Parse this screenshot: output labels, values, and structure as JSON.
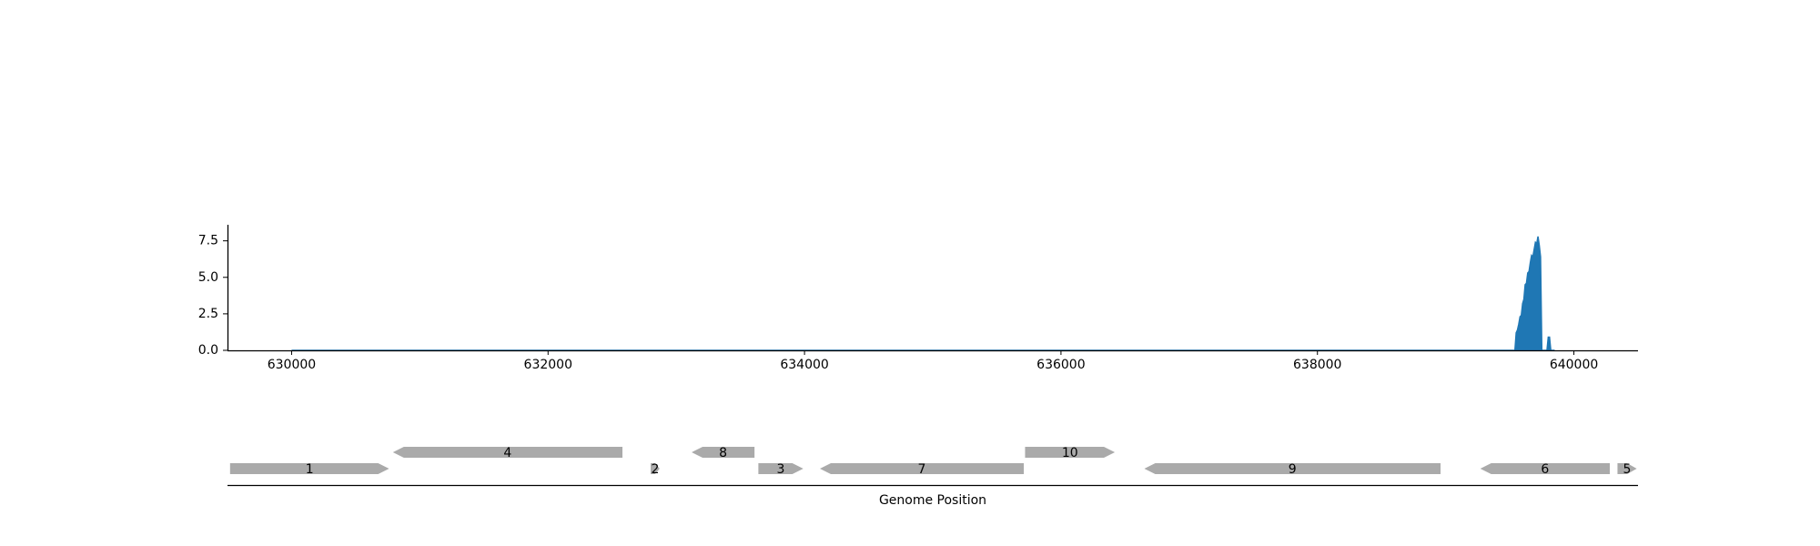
{
  "chart_data": [
    {
      "type": "area",
      "title": "",
      "xlabel": "",
      "ylabel": "",
      "xlim": [
        629500,
        640500
      ],
      "ylim": [
        0,
        8.6
      ],
      "xticks": [
        630000,
        632000,
        634000,
        636000,
        638000,
        640000
      ],
      "xtick_labels": [
        "630000",
        "632000",
        "634000",
        "636000",
        "638000",
        "640000"
      ],
      "yticks": [
        0.0,
        2.5,
        5.0,
        7.5
      ],
      "ytick_labels": [
        "0.0",
        "2.5",
        "5.0",
        "7.5"
      ],
      "grid": false,
      "color": "#1f77b4",
      "series": [
        {
          "x": [
            630000,
            639540,
            639550,
            639560,
            639570,
            639580,
            639590,
            639600,
            639610,
            639620,
            639630,
            639640,
            639650,
            639660,
            639670,
            639680,
            639690,
            639700,
            639710,
            639720,
            639730,
            639740,
            639750,
            639760,
            639770,
            639780,
            639790,
            639800,
            639810,
            639820,
            639830,
            639840,
            639850
          ],
          "y": [
            0,
            0,
            1.2,
            1.4,
            1.8,
            2.3,
            2.4,
            3.2,
            3.5,
            4.5,
            4.6,
            5.3,
            5.4,
            6.0,
            6.5,
            6.4,
            6.9,
            7.4,
            7.3,
            7.8,
            7.2,
            6.4,
            0,
            0,
            0,
            0,
            0,
            0.9,
            0.9,
            0,
            0,
            0,
            0
          ]
        }
      ]
    },
    {
      "type": "gene_track",
      "xlabel": "Genome Position",
      "xlim": [
        629500,
        640500
      ],
      "color": "#aaaaaa",
      "genes": [
        {
          "label": "1",
          "start": 629520,
          "end": 630760,
          "strand": "+",
          "row": 0
        },
        {
          "label": "4",
          "start": 630790,
          "end": 632580,
          "strand": "-",
          "row": 1
        },
        {
          "label": "2",
          "start": 632800,
          "end": 632870,
          "strand": "+",
          "row": 0
        },
        {
          "label": "8",
          "start": 633120,
          "end": 633610,
          "strand": "-",
          "row": 1
        },
        {
          "label": "3",
          "start": 633640,
          "end": 633990,
          "strand": "+",
          "row": 0
        },
        {
          "label": "7",
          "start": 634120,
          "end": 635710,
          "strand": "-",
          "row": 0
        },
        {
          "label": "10",
          "start": 635720,
          "end": 636420,
          "strand": "+",
          "row": 1
        },
        {
          "label": "9",
          "start": 636650,
          "end": 638960,
          "strand": "-",
          "row": 0
        },
        {
          "label": "6",
          "start": 639270,
          "end": 640280,
          "strand": "-",
          "row": 0
        },
        {
          "label": "5",
          "start": 640340,
          "end": 640490,
          "strand": "+",
          "row": 0
        }
      ]
    }
  ]
}
